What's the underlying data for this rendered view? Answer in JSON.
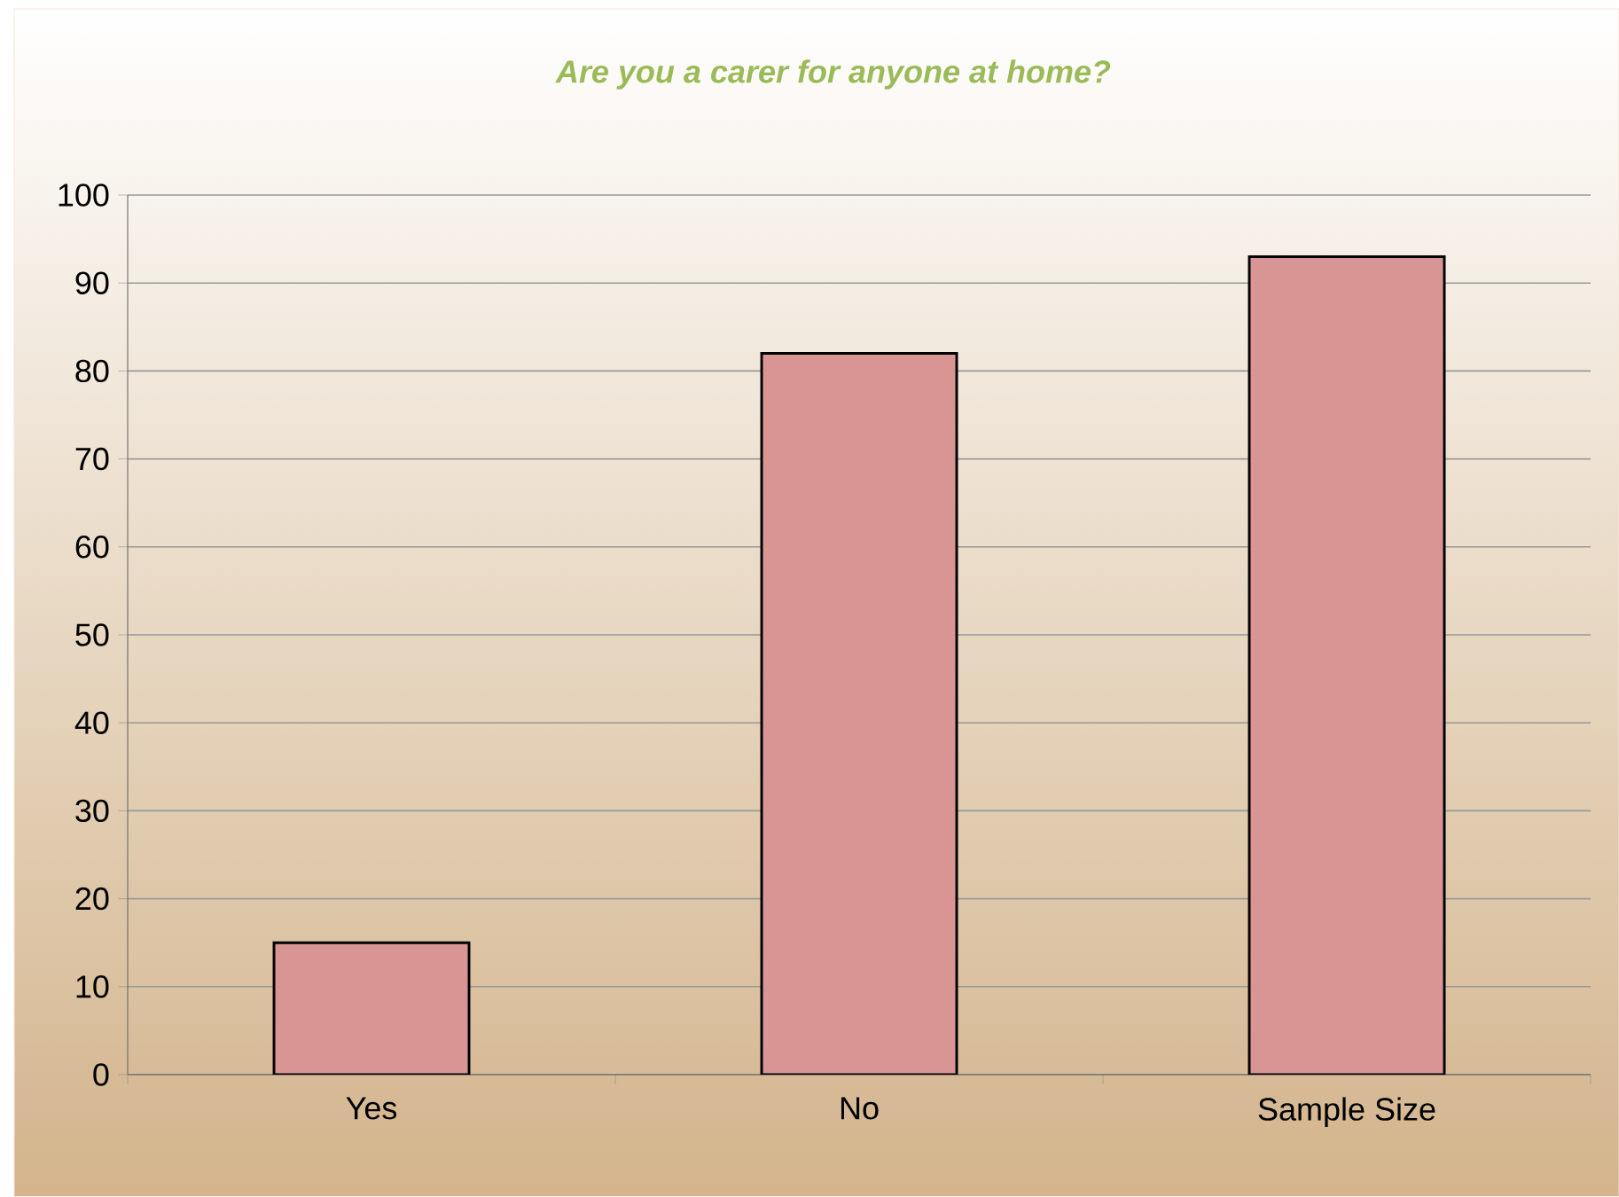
{
  "chart_data": {
    "type": "bar",
    "title": "Are you a carer for anyone at home?",
    "categories": [
      "Yes",
      "No",
      "Sample Size"
    ],
    "values": [
      15,
      82,
      93
    ],
    "color": "#d99594",
    "ylim": [
      0,
      100
    ],
    "yticks": [
      0,
      10,
      20,
      30,
      40,
      50,
      60,
      70,
      80,
      90,
      100
    ],
    "grid": "y"
  }
}
